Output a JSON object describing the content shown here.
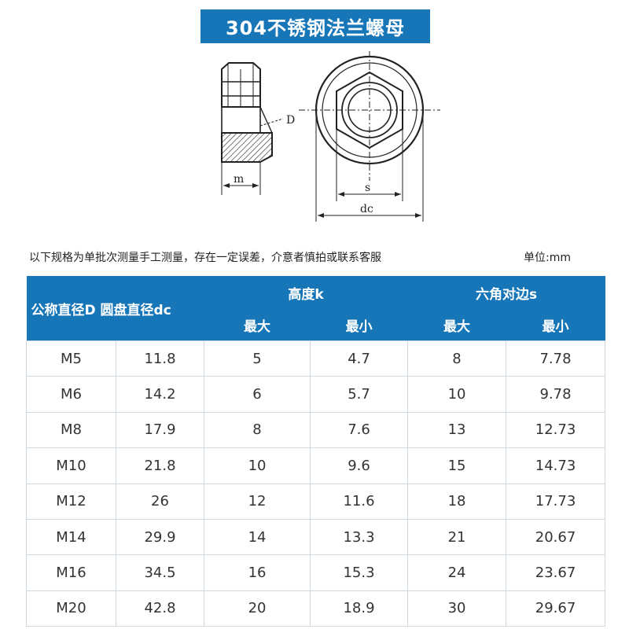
{
  "title": "304不锈钢法兰螺母",
  "diagram": {
    "label_d": "D",
    "label_m": "m",
    "label_s": "s",
    "label_dc": "dc"
  },
  "note": "以下规格为单批次测量手工测量，存在一定误差，介意者慎拍或联系客服",
  "unit": "单位:mm",
  "table": {
    "header": {
      "nominal": "公称直径D",
      "disc": "圆盘直径dc",
      "height": "高度k",
      "hex": "六角对边s",
      "max1": "最大",
      "min1": "最小",
      "max2": "最大",
      "min2": "最小"
    },
    "rows": [
      [
        "M5",
        "11.8",
        "5",
        "4.7",
        "8",
        "7.78"
      ],
      [
        "M6",
        "14.2",
        "6",
        "5.7",
        "10",
        "9.78"
      ],
      [
        "M8",
        "17.9",
        "8",
        "7.6",
        "13",
        "12.73"
      ],
      [
        "M10",
        "21.8",
        "10",
        "9.6",
        "15",
        "14.73"
      ],
      [
        "M12",
        "26",
        "12",
        "11.6",
        "18",
        "17.73"
      ],
      [
        "M14",
        "29.9",
        "14",
        "13.3",
        "21",
        "20.67"
      ],
      [
        "M16",
        "34.5",
        "16",
        "15.3",
        "24",
        "23.67"
      ],
      [
        "M20",
        "42.8",
        "20",
        "18.9",
        "30",
        "29.67"
      ]
    ]
  }
}
